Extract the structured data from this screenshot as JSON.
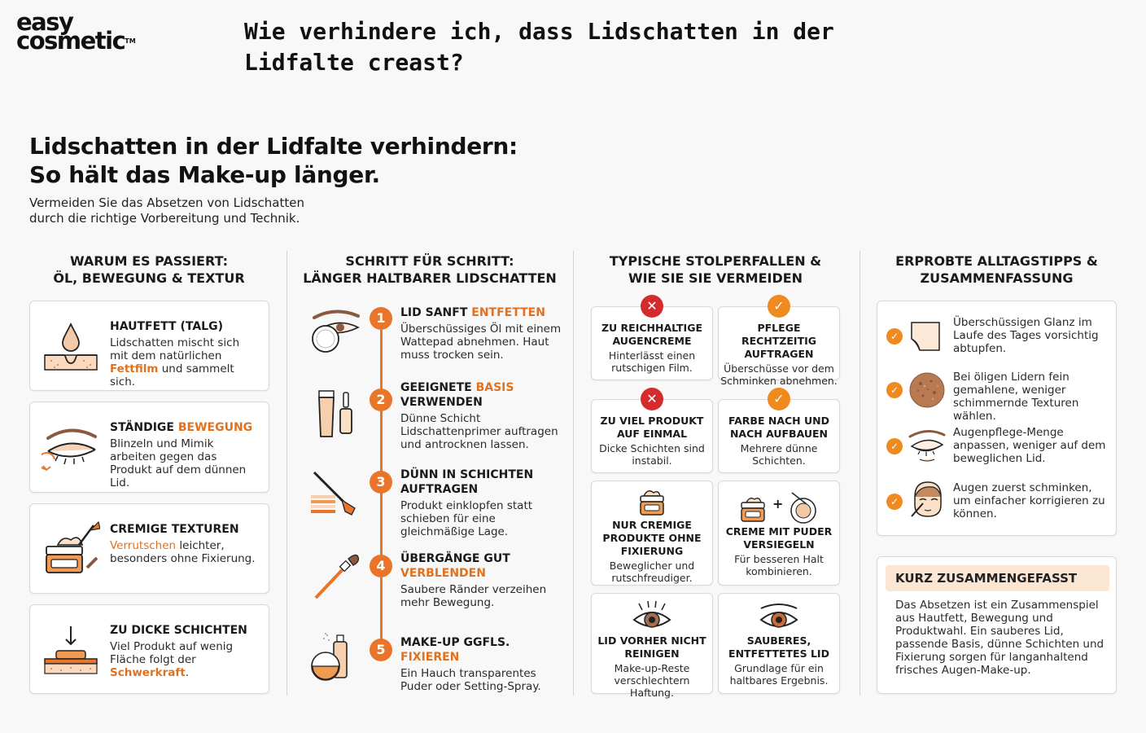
{
  "logo": {
    "line1": "easy",
    "line2": "cosmetic",
    "tm": "TM"
  },
  "question": "Wie verhindere ich, dass Lidschatten in der Lidfalte creast?",
  "title": {
    "line1": "Lidschatten in der Lidfalte verhindern:",
    "line2": "So hält das Make-up länger."
  },
  "subtitle": "Vermeiden Sie das Absetzen von Lidschatten durch die richtige Vorbereitung und Technik.",
  "columns": {
    "why": {
      "line1": "WARUM ES PASSIERT:",
      "line2": "ÖL, BEWEGUNG & TEXTUR"
    },
    "steps": {
      "line1": "SCHRITT FÜR SCHRITT:",
      "line2": "LÄNGER HALTBARER LIDSCHATTEN"
    },
    "pitfalls": {
      "line1": "TYPISCHE STOLPERFALLEN &",
      "line2": "WIE SIE SIE VERMEIDEN"
    },
    "tips": {
      "line1": "ERPROBTE ALLTAGSTIPPS &",
      "line2": "ZUSAMMENFASSUNG"
    }
  },
  "why": [
    {
      "title": "HAUTFETT (TALG)",
      "t1": "Lidschatten mischt sich mit dem natürlichen ",
      "hl": "Fettfilm",
      "t2": " und sammelt sich.",
      "icon": "oil-drop-skin-icon"
    },
    {
      "title_pre": "STÄNDIGE ",
      "title_hl": "BEWEGUNG",
      "body": "Blinzeln und Mimik arbeiten gegen das Produkt auf dem dünnen Lid.",
      "icon": "blinking-eye-icon"
    },
    {
      "title": "CREMIGE TEXTUREN",
      "hl": "Verrutschen",
      "t2": " leichter, besonders ohne Fixierung.",
      "icon": "cream-jar-brush-icon"
    },
    {
      "title": "ZU DICKE SCHICHTEN",
      "t1": "Viel Produkt auf wenig Fläche folgt der ",
      "hl": "Schwerkraft",
      "t2": ".",
      "icon": "thick-layer-icon"
    }
  ],
  "steps": [
    {
      "num": "1",
      "t_pre": "LID SANFT ",
      "t_hl": "ENTFETTEN",
      "t_post": "",
      "body": "Überschüssiges Öl mit einem Wattepad abnehmen. Haut muss trocken sein.",
      "icon": "eye-cotton-pad-icon"
    },
    {
      "num": "2",
      "t_pre": "GEEIGNETE ",
      "t_hl": "BASIS",
      "t_post": " VERWENDEN",
      "body": "Dünne Schicht Lidschattenprimer auftragen und antrocknen lassen.",
      "icon": "primer-tube-icon"
    },
    {
      "num": "3",
      "t_pre": "DÜNN IN SCHICHTEN AUFTRAGEN",
      "t_hl": "",
      "t_post": "",
      "body": "Produkt einklopfen statt schieben für eine gleichmäßige Lage.",
      "icon": "brush-layers-icon"
    },
    {
      "num": "4",
      "t_pre": "ÜBERGÄNGE GUT ",
      "t_hl": "VERBLENDEN",
      "t_post": "",
      "body": "Saubere Ränder verzeihen mehr Bewegung.",
      "icon": "blending-brush-icon"
    },
    {
      "num": "5",
      "t_pre": "MAKE-UP GGFLS. ",
      "t_hl": "FIXIEREN",
      "t_post": "",
      "body": "Ein Hauch transparentes Puder oder Setting-Spray.",
      "icon": "powder-spray-icon"
    }
  ],
  "pitfalls": [
    {
      "status": "bad",
      "mark": "✕",
      "title": "ZU REICHHALTIGE AUGENCREME",
      "body": "Hinterlässt einen rutschigen Film."
    },
    {
      "status": "good",
      "mark": "✓",
      "title": "PFLEGE RECHTZEITIG AUFTRAGEN",
      "body": "Überschüsse vor dem Schminken abnehmen."
    },
    {
      "status": "bad",
      "mark": "✕",
      "title": "ZU VIEL PRODUKT AUF EINMAL",
      "body": "Dicke Schichten sind instabil."
    },
    {
      "status": "good",
      "mark": "✓",
      "title": "FARBE NACH UND NACH AUFBAUEN",
      "body": "Mehrere dünne Schichten."
    },
    {
      "status": "bad",
      "title": "NUR CREMIGE PRODUKTE OHNE FIXIERUNG",
      "body": "Beweglicher und rutschfreudiger.",
      "icon": "cream-jar-icon"
    },
    {
      "status": "good",
      "title": "CREME MIT PUDER VERSIEGELN",
      "body": "Für besseren Halt kombinieren.",
      "icon": "cream-plus-powder-icon",
      "plus": "+"
    },
    {
      "status": "bad",
      "title": "LID VORHER NICHT REINIGEN",
      "body": "Make-up-Reste verschlechtern Haftung.",
      "icon": "eye-lashes-icon"
    },
    {
      "status": "good",
      "title": "SAUBERES, ENTFETTETES LID",
      "body": "Grundlage für ein haltbares Ergebnis.",
      "icon": "clean-eye-icon"
    }
  ],
  "tips": [
    {
      "check": "✓",
      "text": "Überschüssigen Glanz im Laufe des Tages vorsichtig abtupfen.",
      "icon": "blotting-paper-icon"
    },
    {
      "check": "✓",
      "text": "Bei öligen Lidern fein gemahlene, weniger schimmernde Texturen wählen.",
      "icon": "matte-powder-icon"
    },
    {
      "check": "✓",
      "text": "Augenpflege-Menge anpassen, weniger auf dem beweglichen Lid.",
      "icon": "eye-care-icon"
    },
    {
      "check": "✓",
      "text": "Augen zuerst schminken, um einfacher korrigieren zu können.",
      "icon": "face-eye-makeup-icon"
    }
  ],
  "summary": {
    "heading": "KURZ ZUSAMMENGEFASST",
    "text": "Das Absetzen ist ein Zusammenspiel aus Hautfett, Bewegung und Produktwahl. Ein sauberes Lid, passende Basis, dünne Schichten und Fixierung sorgen für langanhaltend frisches Augen-Make-up."
  },
  "colors": {
    "accent": "#e8752a",
    "bad": "#d42c2c",
    "good": "#ef8a1e",
    "summary_bg": "#fbe6d4"
  }
}
